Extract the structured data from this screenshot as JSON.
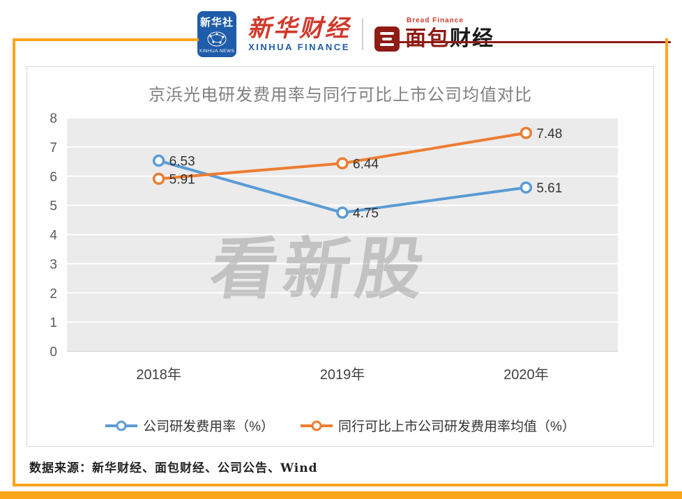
{
  "colors": {
    "accent_orange": "#FBA51A",
    "brand_dark_red": "#8E1B14",
    "xinhua_blue": "#1F5CA9",
    "xinhua_red": "#D03A2B",
    "plot_background": "#EBEBEB"
  },
  "header": {
    "xinhua_news": {
      "cn": "新华社",
      "en": "XINHUA NEWS"
    },
    "xinhua_finance": {
      "cn": "新华财经",
      "en": "XINHUA FINANCE"
    },
    "bread_finance": {
      "en": "Bread Finance",
      "cn_primary": "面包",
      "cn_secondary": "财经"
    }
  },
  "chart_data": {
    "type": "line",
    "title": "京浜光电研发费用率与同行可比上市公司均值对比",
    "categories": [
      "2018年",
      "2019年",
      "2020年"
    ],
    "series": [
      {
        "name": "公司研发费用率（%）",
        "color": "#5B9BD5",
        "values": [
          6.53,
          4.75,
          5.61
        ]
      },
      {
        "name": "同行可比上市公司研发费用率均值（%）",
        "color": "#ED7D31",
        "values": [
          5.91,
          6.44,
          7.48
        ]
      }
    ],
    "ylim": [
      0,
      8
    ],
    "ytick_step": 1,
    "grid": true,
    "legend_position": "bottom",
    "watermark": "看新股"
  },
  "footer": {
    "source": "数据来源：新华财经、面包财经、公司公告、Wind"
  }
}
